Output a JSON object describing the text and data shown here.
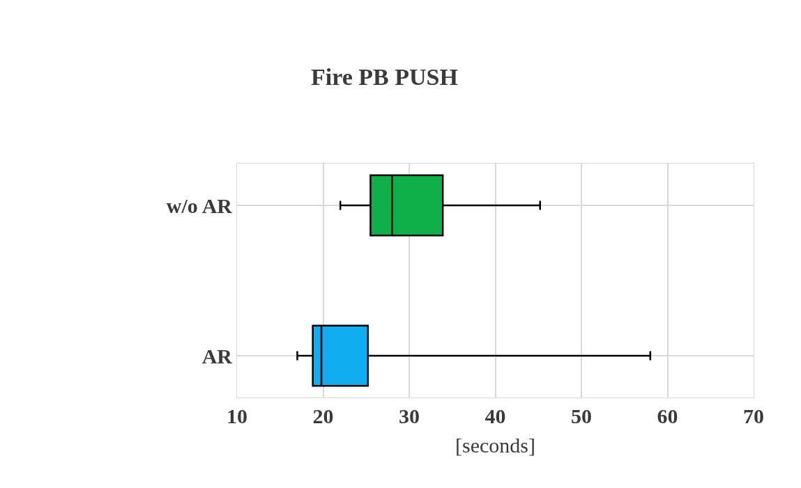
{
  "chart_data": {
    "type": "box",
    "title": "Fire PB PUSH",
    "xlabel": "[seconds]",
    "orientation": "horizontal",
    "categories": [
      "w/o AR",
      "AR"
    ],
    "colors": [
      "#0fb04a",
      "#10aef0"
    ],
    "boxes": [
      {
        "low": 22,
        "q1": 25.5,
        "median": 28,
        "q3": 33.9,
        "high": 45.2
      },
      {
        "low": 17,
        "q1": 18.8,
        "median": 19.8,
        "q3": 25.2,
        "high": 58
      }
    ],
    "xlim": [
      10,
      70
    ],
    "xticks": [
      10,
      20,
      30,
      40,
      50,
      60,
      70
    ],
    "grid": true,
    "legend": false
  }
}
